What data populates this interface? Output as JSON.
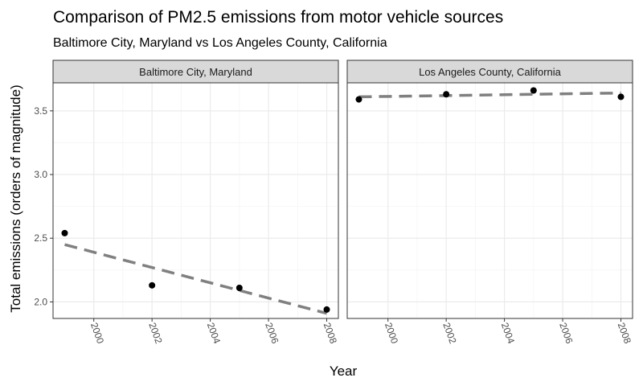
{
  "chart_data": {
    "type": "scatter",
    "title": "Comparison of PM2.5 emissions from motor vehicle sources",
    "subtitle": "Baltimore City, Maryland vs Los Angeles County, California",
    "xlabel": "Year",
    "ylabel": "Total emissions (orders of magnitude)",
    "x_ticks": [
      2000,
      2002,
      2004,
      2006,
      2008
    ],
    "y_ticks": [
      2.0,
      2.5,
      3.0,
      3.5
    ],
    "y_tick_labels": [
      "2.0",
      "2.5",
      "3.0",
      "3.5"
    ],
    "xlim": [
      1998.6,
      2008.4
    ],
    "ylim": [
      1.87,
      3.72
    ],
    "grid": true,
    "panels": [
      {
        "strip": "Baltimore City, Maryland",
        "points": [
          {
            "x": 1999,
            "y": 2.54
          },
          {
            "x": 2002,
            "y": 2.13
          },
          {
            "x": 2005,
            "y": 2.11
          },
          {
            "x": 2008,
            "y": 1.94
          }
        ],
        "trend": {
          "x": [
            1999,
            2008
          ],
          "y": [
            2.45,
            1.91
          ]
        }
      },
      {
        "strip": "Los Angeles County, California",
        "points": [
          {
            "x": 1999,
            "y": 3.59
          },
          {
            "x": 2002,
            "y": 3.63
          },
          {
            "x": 2005,
            "y": 3.66
          },
          {
            "x": 2008,
            "y": 3.61
          }
        ],
        "trend": {
          "x": [
            1999,
            2008
          ],
          "y": [
            3.61,
            3.64
          ]
        }
      }
    ],
    "colors": {
      "points": "#000000",
      "trend": "#808080",
      "strip_fill": "#d9d9d9",
      "grid_major": "#ebebeb",
      "grid_minor": "#f5f5f5",
      "panel_border": "#333333"
    }
  }
}
